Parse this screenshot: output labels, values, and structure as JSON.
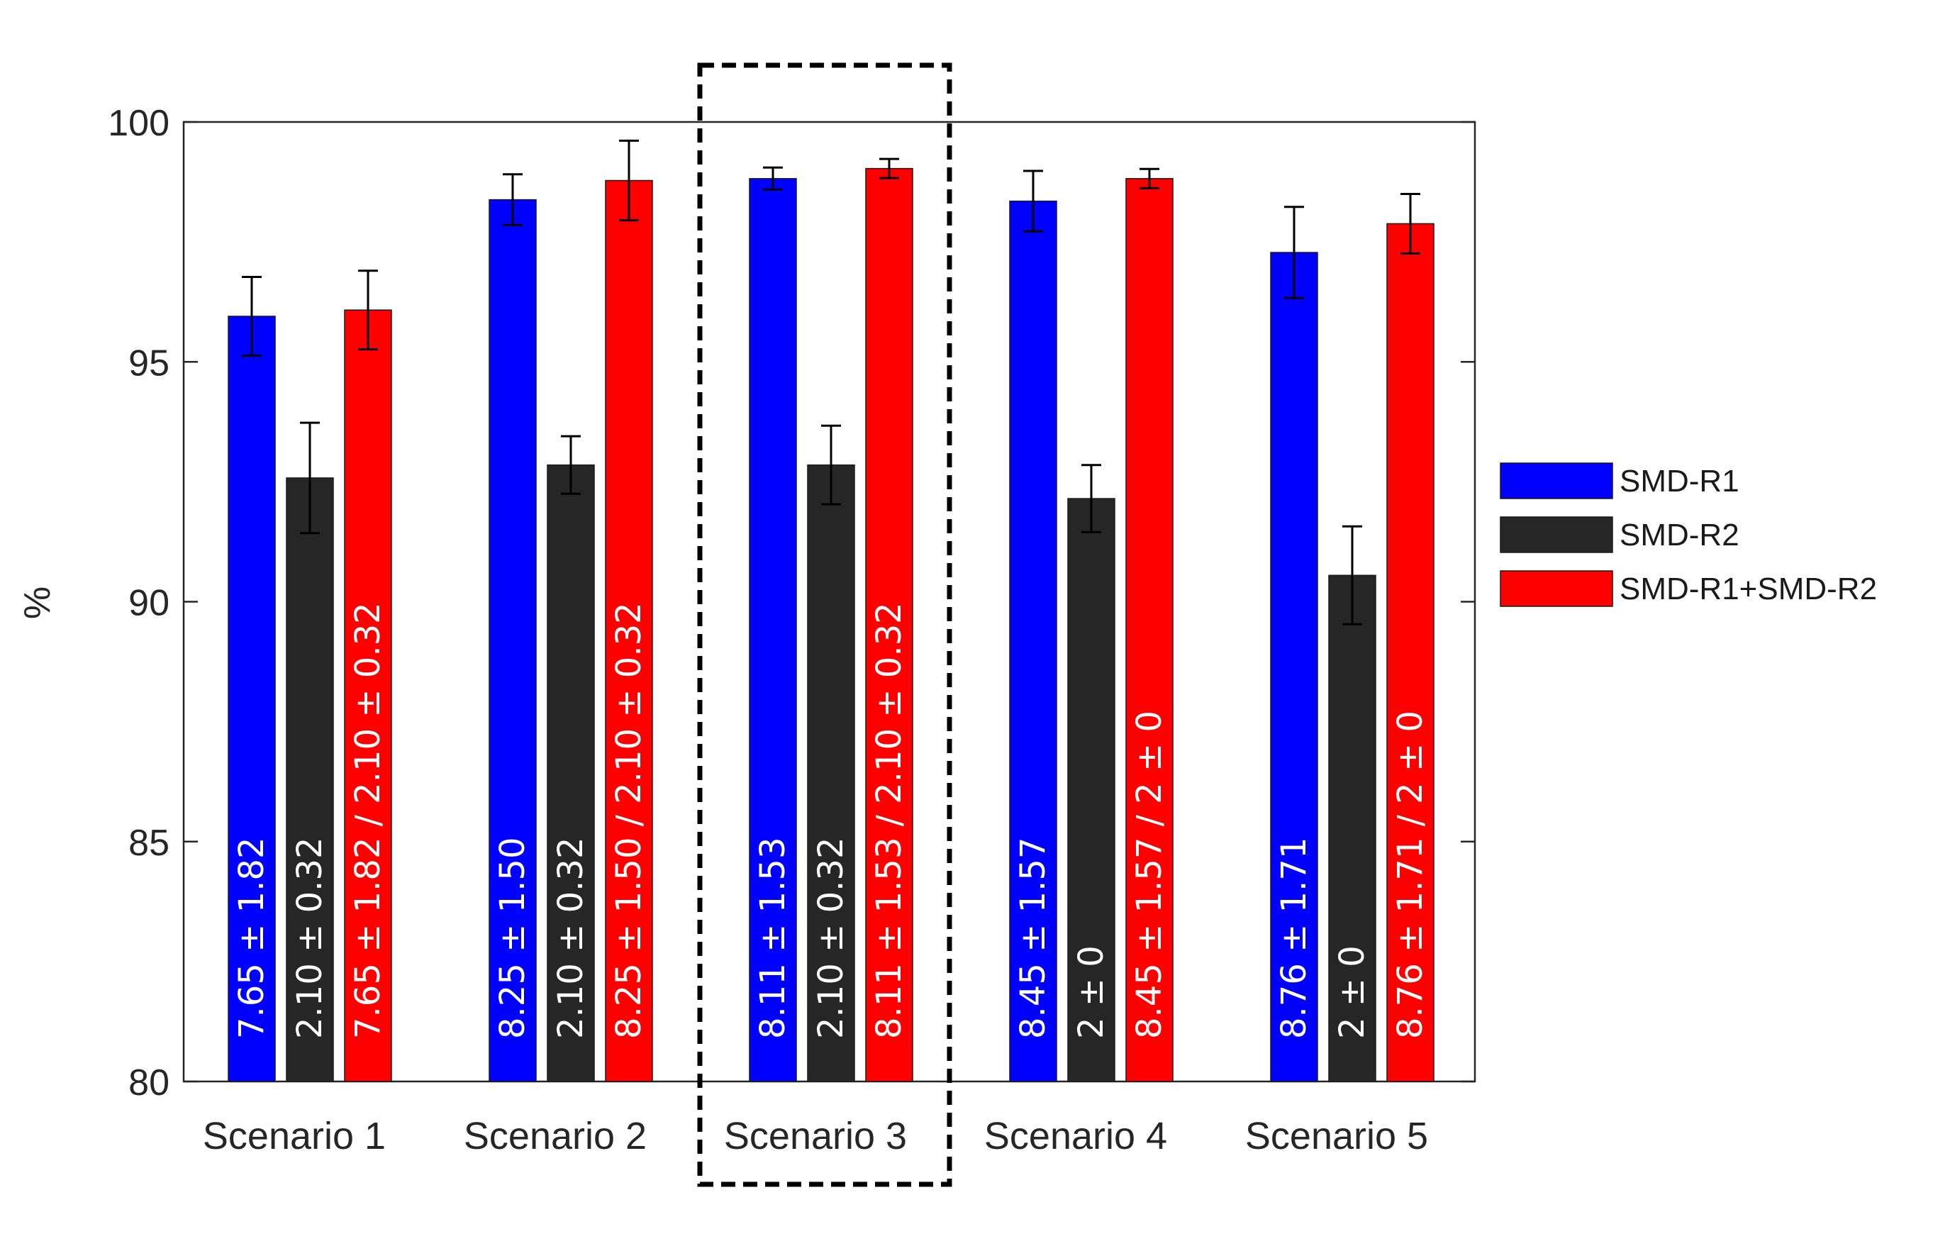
{
  "chart_data": {
    "type": "bar",
    "ylabel": "%",
    "xlabel": "",
    "ylim": [
      80,
      100
    ],
    "yticks": [
      80,
      85,
      90,
      95,
      100
    ],
    "ytick_labels": [
      "80",
      "85",
      "90",
      "95",
      "100"
    ],
    "categories": [
      "Scenario 1",
      "Scenario 2",
      "Scenario 3",
      "Scenario 4",
      "Scenario 5"
    ],
    "highlighted_category": "Scenario 3",
    "highlight_style": "dashed black box",
    "legend_position": "right",
    "series": [
      {
        "name": "SMD-R1",
        "color": "#0000ff",
        "values": [
          95.95,
          98.38,
          98.82,
          98.35,
          97.28
        ],
        "errors": [
          0.82,
          0.53,
          0.23,
          0.63,
          0.95
        ],
        "labels": [
          "7.65 ± 1.82",
          "8.25 ± 1.50",
          "8.11 ± 1.53",
          "8.45 ± 1.57",
          "8.76 ± 1.71"
        ]
      },
      {
        "name": "SMD-R2",
        "color": "#262626",
        "values": [
          92.58,
          92.85,
          92.85,
          92.15,
          90.55
        ],
        "errors": [
          1.15,
          0.6,
          0.82,
          0.7,
          1.02
        ],
        "labels": [
          "2.10 ± 0.32",
          "2.10 ± 0.32",
          "2.10 ± 0.32",
          "2 ± 0",
          "2 ± 0"
        ]
      },
      {
        "name": "SMD-R1+SMD-R2",
        "color": "#ff0000",
        "values": [
          96.08,
          98.78,
          99.03,
          98.82,
          97.88
        ],
        "errors": [
          0.82,
          0.83,
          0.2,
          0.2,
          0.62
        ],
        "labels": [
          "7.65 ± 1.82 / 2.10 ± 0.32",
          "8.25 ± 1.50 / 2.10 ± 0.32",
          "8.11 ± 1.53 / 2.10 ± 0.32",
          "8.45 ± 1.57 / 2 ± 0",
          "8.76 ± 1.71 / 2 ± 0"
        ]
      }
    ]
  }
}
